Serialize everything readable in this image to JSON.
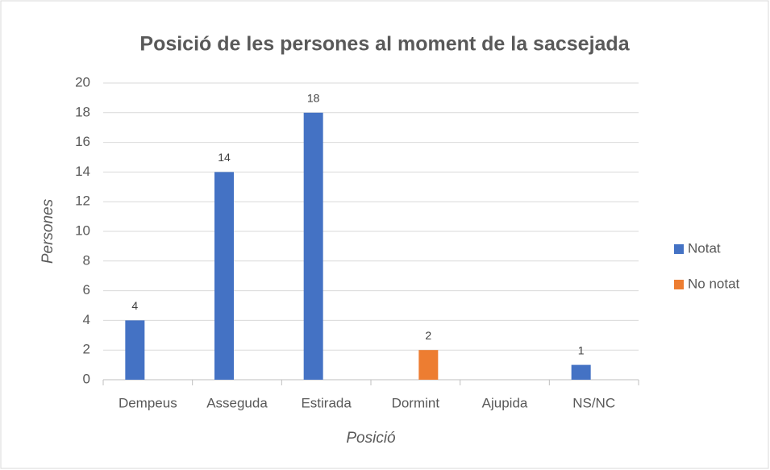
{
  "chart_data": {
    "type": "bar",
    "title": "Posició de les persones al moment de la sacsejada",
    "x_label": "Posició",
    "y_label": "Persones",
    "categories": [
      "Dempeus",
      "Asseguda",
      "Estirada",
      "Dormint",
      "Ajupida",
      "NS/NC"
    ],
    "series": [
      {
        "name": "Notat",
        "color": "#4472c4",
        "values": [
          4,
          14,
          18,
          null,
          null,
          1
        ]
      },
      {
        "name": "No notat",
        "color": "#ed7d31",
        "values": [
          null,
          null,
          null,
          2,
          null,
          null
        ]
      }
    ],
    "ylim": [
      0,
      20
    ],
    "yticks": [
      0,
      2,
      4,
      6,
      8,
      10,
      12,
      14,
      16,
      18,
      20
    ],
    "grid": true,
    "legend": "right"
  }
}
